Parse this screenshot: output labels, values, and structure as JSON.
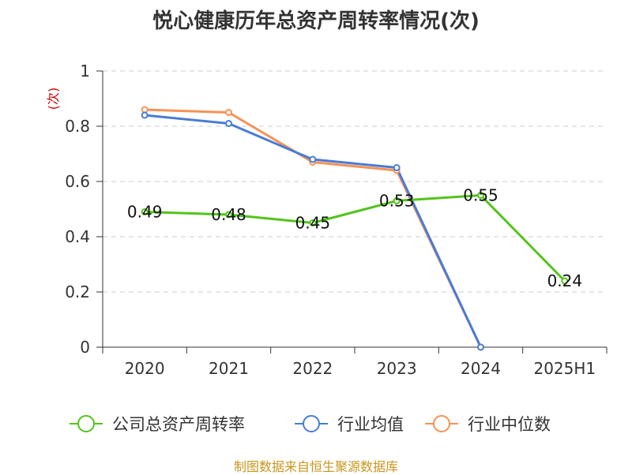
{
  "chart_data": {
    "type": "line",
    "title": "悦心健康历年总资产周转率情况(次)",
    "ylabel": "(次)",
    "categories": [
      "2020",
      "2021",
      "2022",
      "2023",
      "2024",
      "2025H1"
    ],
    "ylim": [
      0,
      1
    ],
    "yticks": [
      "0",
      "0.2",
      "0.4",
      "0.6",
      "0.8",
      "1"
    ],
    "grid": true,
    "legend_position": "bottom",
    "series": [
      {
        "name": "公司总资产周转率",
        "color": "#52c41a",
        "values": [
          0.49,
          0.48,
          0.45,
          0.53,
          0.55,
          0.24
        ],
        "labels": [
          "0.49",
          "0.48",
          "0.45",
          "0.53",
          "0.55",
          "0.24"
        ]
      },
      {
        "name": "行业均值",
        "color": "#4a7bd6",
        "values": [
          0.84,
          0.81,
          0.68,
          0.65,
          0.0,
          null
        ]
      },
      {
        "name": "行业中位数",
        "color": "#f59256",
        "values": [
          0.86,
          0.85,
          0.67,
          0.64,
          0.0,
          null
        ]
      }
    ]
  },
  "source": "制图数据来自恒生聚源数据库"
}
